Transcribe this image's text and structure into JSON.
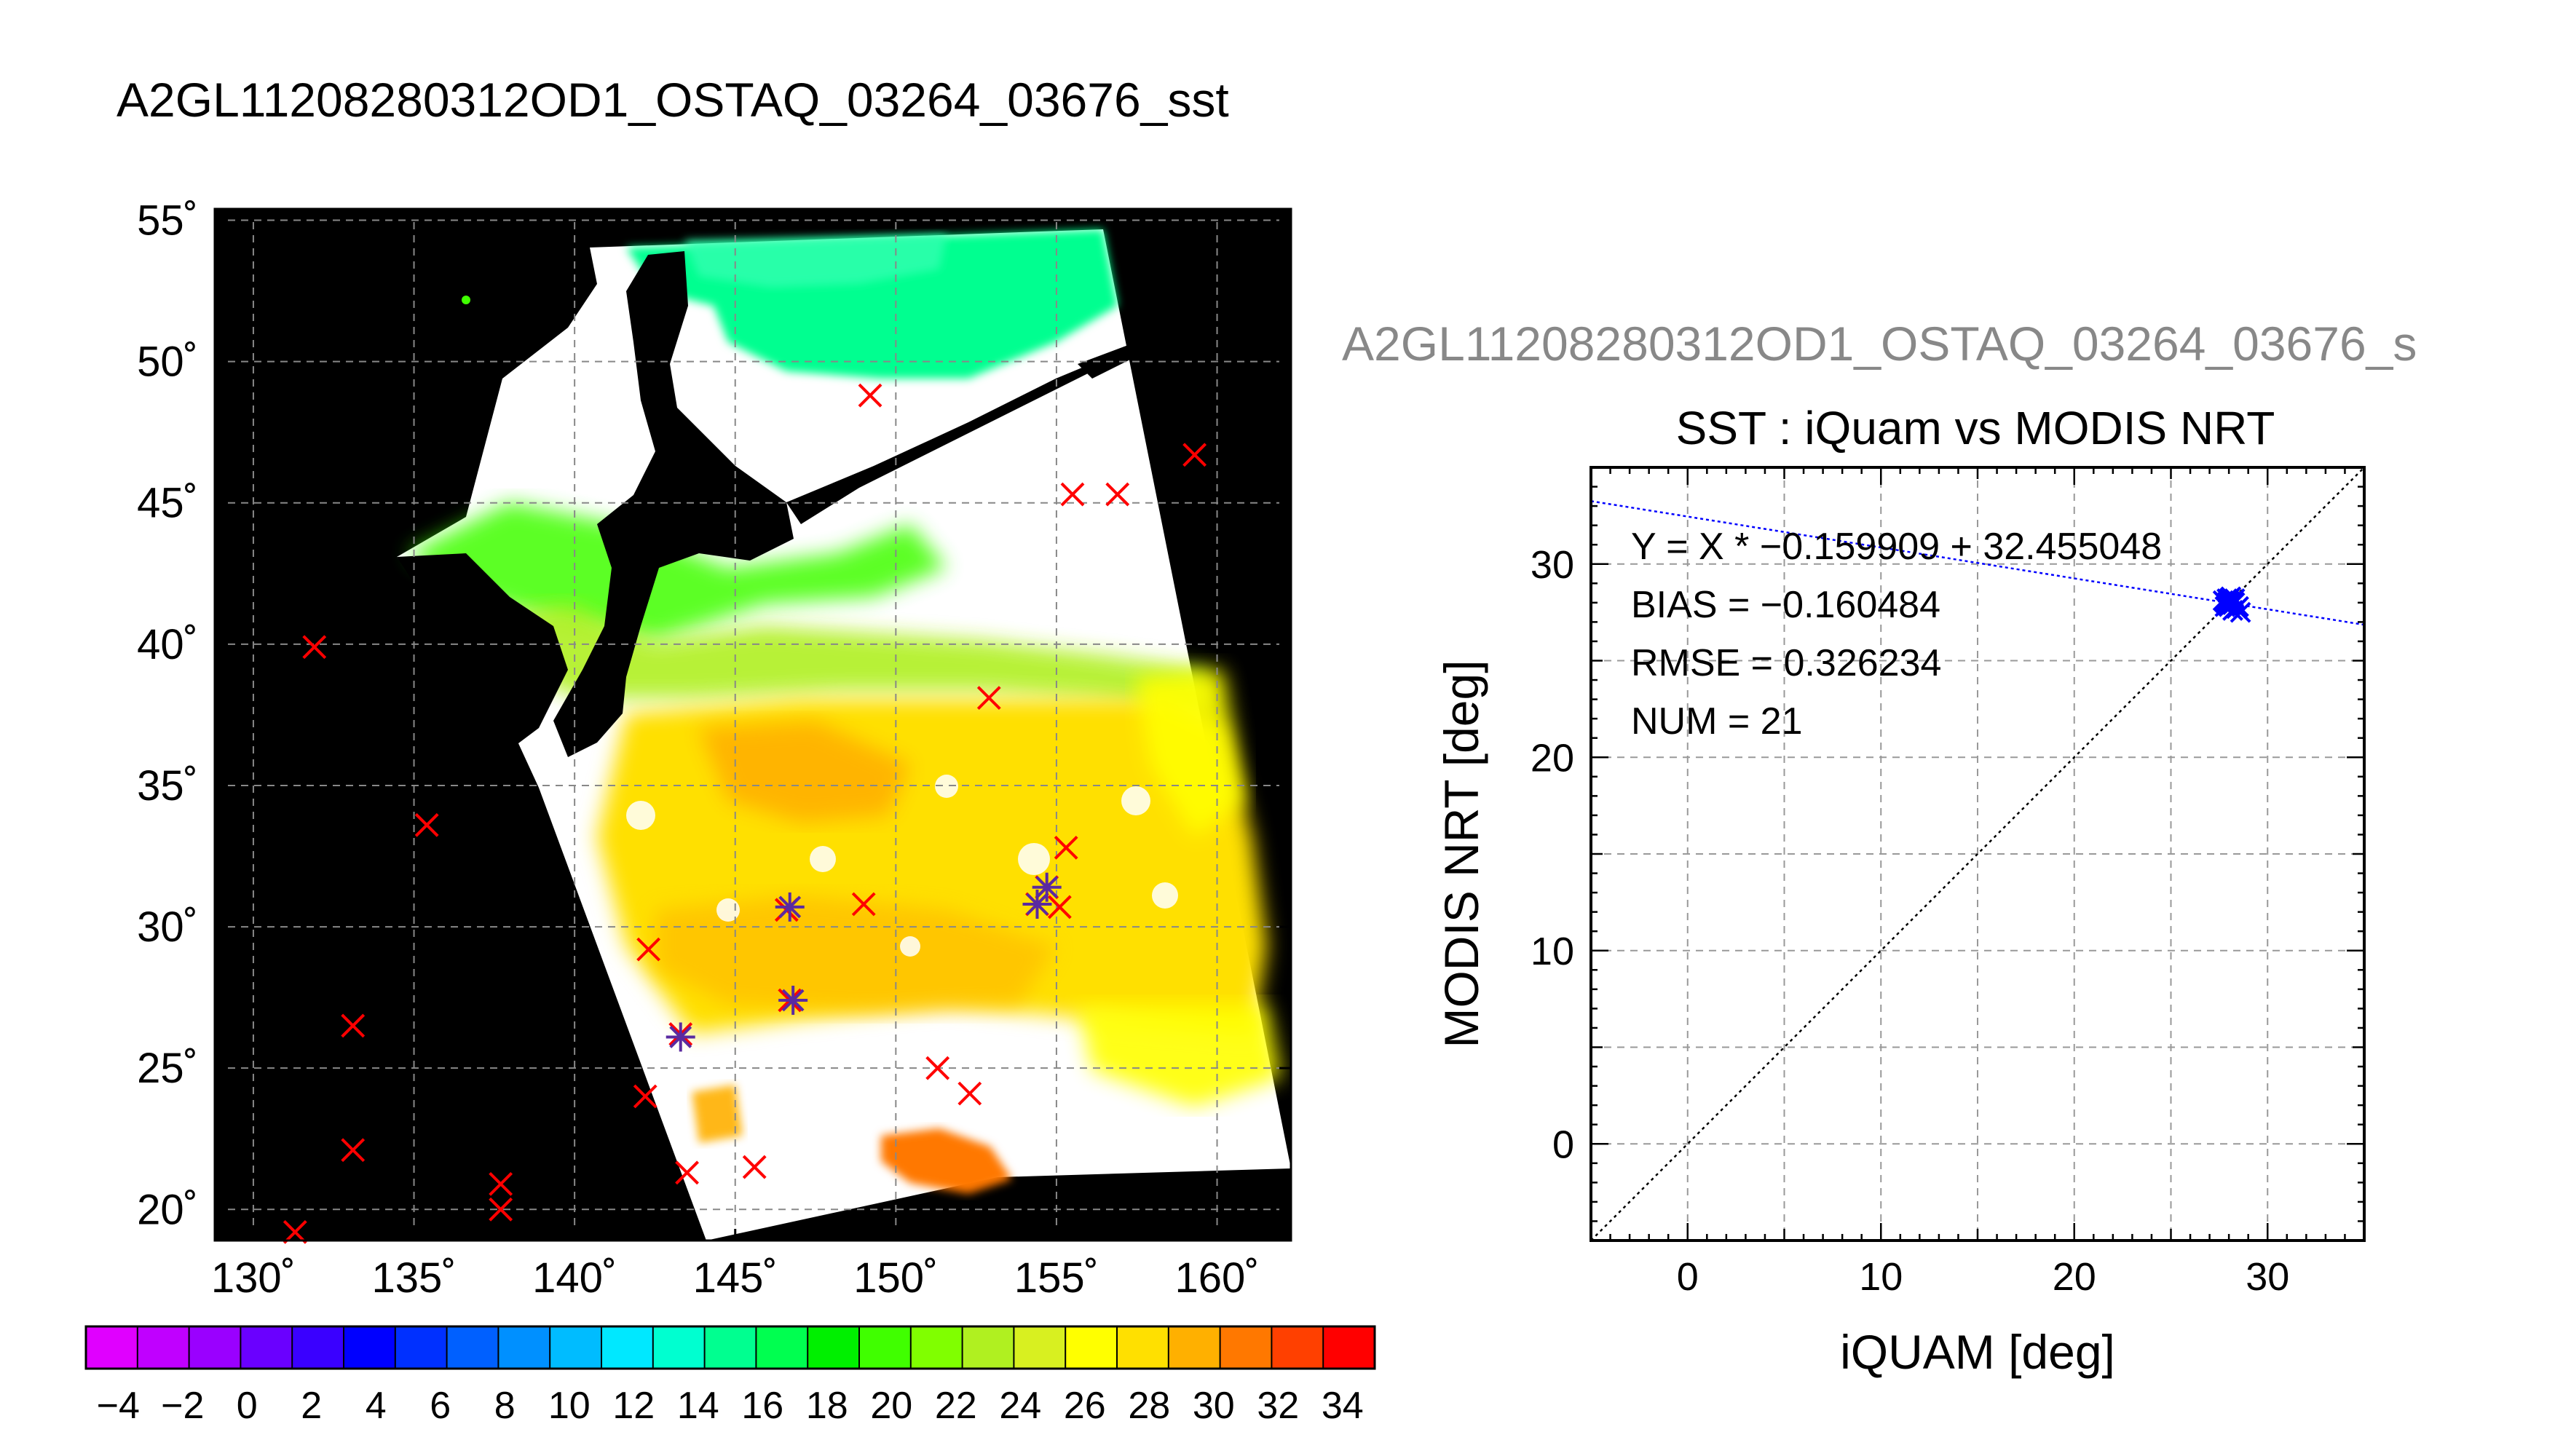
{
  "page": {
    "main_title": "A2GL11208280312OD1_OSTAQ_03264_03676_sst",
    "scatter_header": "A2GL11208280312OD1_OSTAQ_03264_03676_s"
  },
  "map": {
    "lat_labels": [
      "55˚",
      "50˚",
      "45˚",
      "40˚",
      "35˚",
      "30˚",
      "25˚",
      "20˚"
    ],
    "lat_values": [
      55,
      50,
      45,
      40,
      35,
      30,
      25,
      20
    ],
    "lon_labels": [
      "130˚",
      "135˚",
      "140˚",
      "145˚",
      "150˚",
      "155˚",
      "160˚"
    ],
    "lon_values": [
      130,
      135,
      140,
      145,
      150,
      155,
      160
    ],
    "lon_range": [
      128.8,
      162.3
    ],
    "lat_range": [
      18.9,
      55.4
    ],
    "background": "#000000",
    "cloud_color": "#ffffff",
    "colorbar": {
      "min": -5,
      "max": 35,
      "tick_labels": [
        "−4",
        "−2",
        "0",
        "2",
        "4",
        "6",
        "8",
        "10",
        "12",
        "14",
        "16",
        "18",
        "20",
        "22",
        "24",
        "26",
        "28",
        "30",
        "32",
        "34"
      ],
      "tick_values": [
        -4,
        -2,
        0,
        2,
        4,
        6,
        8,
        10,
        12,
        14,
        16,
        18,
        20,
        22,
        24,
        26,
        28,
        30,
        32,
        34
      ],
      "colors": [
        "#e000ff",
        "#c000ff",
        "#9a00ff",
        "#6a00ff",
        "#3a00ff",
        "#0000ff",
        "#0030ff",
        "#0060ff",
        "#0090ff",
        "#00bcff",
        "#00e8ff",
        "#00ffd0",
        "#00ff90",
        "#00ff50",
        "#00f000",
        "#40ff00",
        "#80ff00",
        "#b0f020",
        "#d8f020",
        "#ffff00",
        "#ffe000",
        "#ffb000",
        "#ff7800",
        "#ff4000",
        "#ff0000"
      ]
    },
    "obs_x": [
      [
        131.9,
        39.9
      ],
      [
        135.4,
        33.6
      ],
      [
        133.1,
        26.5
      ],
      [
        133.1,
        22.1
      ],
      [
        131.3,
        19.2
      ],
      [
        137.7,
        20.9
      ],
      [
        137.7,
        20.0
      ],
      [
        142.3,
        29.2
      ],
      [
        142.2,
        24.0
      ],
      [
        143.5,
        21.3
      ],
      [
        145.6,
        21.5
      ],
      [
        149.2,
        48.8
      ],
      [
        152.9,
        38.1
      ],
      [
        155.5,
        45.3
      ],
      [
        156.9,
        45.3
      ],
      [
        159.3,
        46.7
      ],
      [
        149.0,
        30.8
      ],
      [
        151.3,
        25.0
      ],
      [
        152.3,
        24.1
      ],
      [
        155.3,
        32.8
      ],
      [
        155.1,
        30.7
      ],
      [
        146.6,
        30.6
      ],
      [
        146.7,
        27.4
      ],
      [
        143.3,
        26.2
      ],
      [
        154.4,
        30.8
      ],
      [
        154.7,
        31.4
      ]
    ],
    "obs_star": [
      [
        146.7,
        30.7
      ],
      [
        146.8,
        27.4
      ],
      [
        143.3,
        26.1
      ],
      [
        154.4,
        30.8
      ],
      [
        154.7,
        31.4
      ]
    ]
  },
  "chart_data": {
    "type": "scatter",
    "title": "SST : iQuam vs MODIS NRT",
    "xlabel": "iQUAM [deg]",
    "ylabel": "MODIS NRT [deg]",
    "xlim": [
      -5,
      35
    ],
    "ylim": [
      -5,
      35
    ],
    "x_ticks": [
      0,
      10,
      20,
      30
    ],
    "y_ticks": [
      0,
      10,
      20,
      30
    ],
    "grid": true,
    "annotations": [
      "Y = X * −0.159909 + 32.455048",
      "BIAS = −0.160484",
      "RMSE = 0.326234",
      "NUM = 21"
    ],
    "fit": {
      "slope": -0.159909,
      "intercept": 32.455048,
      "color": "#0000ff"
    },
    "identity_line": true,
    "points": [
      [
        27.9,
        28.0
      ],
      [
        28.0,
        28.1
      ],
      [
        28.1,
        27.9
      ],
      [
        28.2,
        28.1
      ],
      [
        27.8,
        27.8
      ],
      [
        28.3,
        28.0
      ],
      [
        28.0,
        27.8
      ],
      [
        27.9,
        28.2
      ],
      [
        28.4,
        27.7
      ],
      [
        28.6,
        27.5
      ],
      [
        28.1,
        28.3
      ],
      [
        27.7,
        28.1
      ],
      [
        28.2,
        27.6
      ],
      [
        28.0,
        28.0
      ],
      [
        28.5,
        27.8
      ],
      [
        27.9,
        27.9
      ],
      [
        28.1,
        28.0
      ],
      [
        28.3,
        28.2
      ],
      [
        27.8,
        28.0
      ],
      [
        28.2,
        27.9
      ],
      [
        28.0,
        28.2
      ]
    ],
    "point_color": "#0000ff"
  }
}
